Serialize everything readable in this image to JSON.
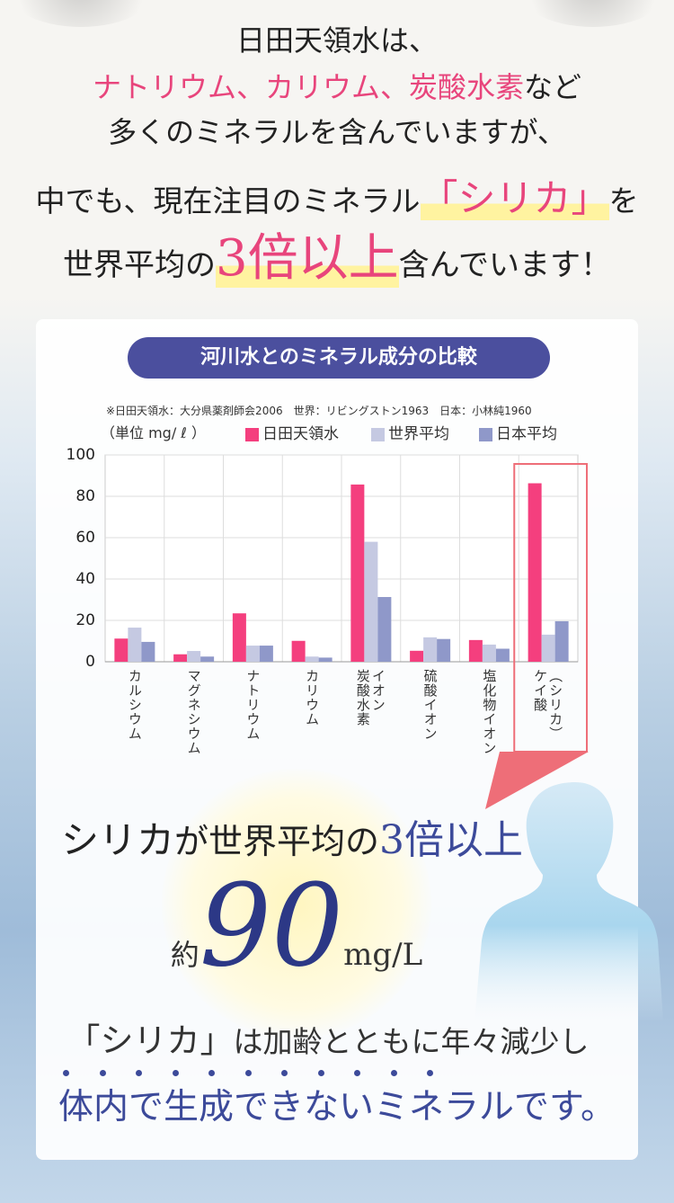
{
  "intro": {
    "line1": "日田天領水は、",
    "line2_highlight": "ナトリウム、カリウム、炭酸水素",
    "line2_rest": "など",
    "line3": "多くのミネラルを含んでいますが、",
    "line4_pre": "中でも、現在注目のミネラル",
    "line4_highlight": "「シリカ」",
    "line4_post": "を",
    "line5_pre": "世界平均の",
    "line5_highlight": "3倍以上",
    "line5_post": "含んでいます！"
  },
  "chart_data": {
    "type": "bar",
    "title": "河川水とのミネラル成分の比較",
    "source_note": "※日田天領水：大分県薬剤師会2006　世界：リビングストン1963　日本：小林純1960",
    "ylabel": "（単位 mg/ ℓ ）",
    "ylim": [
      0,
      100
    ],
    "yticks": [
      "0",
      "20",
      "40",
      "60",
      "80",
      "100"
    ],
    "grid": true,
    "legend_position": "top",
    "categories": [
      "カルシウム",
      "マグネシウム",
      "ナトリウム",
      "カリウム",
      "炭酸水素イオン",
      "硫酸イオン",
      "塩化物イオン",
      "ケイ酸（シリカ）"
    ],
    "category_labels": [
      [
        "カルシウム"
      ],
      [
        "マグネシウム"
      ],
      [
        "ナトリウム"
      ],
      [
        "カリウム"
      ],
      [
        "イオン",
        "炭酸水素"
      ],
      [
        "硫酸イオン"
      ],
      [
        "塩化物イオン"
      ],
      [
        "（シリカ）",
        "ケイ酸"
      ]
    ],
    "highlighted_category": "ケイ酸（シリカ）",
    "series": [
      {
        "name": "日田天領水",
        "color": "#f43f7e",
        "values": [
          11.2,
          3.6,
          23.4,
          10.1,
          85.7,
          5.3,
          10.5,
          86.3
        ]
      },
      {
        "name": "世界平均",
        "color": "#c5c9e2",
        "values": [
          16.5,
          5.2,
          7.8,
          2.5,
          58.0,
          11.8,
          8.3,
          13.1
        ]
      },
      {
        "name": "日本平均",
        "color": "#8f98c9",
        "values": [
          9.6,
          2.5,
          7.8,
          2.0,
          31.3,
          11.0,
          6.3,
          19.6
        ]
      }
    ]
  },
  "callout": {
    "line1_pre": "シリカ",
    "line1_mid": "が世界平均の",
    "line1_highlight": "3倍以上",
    "approx": "約",
    "value": "90",
    "unit": "mg/L"
  },
  "closing": {
    "line1_quote": "「シリカ」",
    "line1_rest": "は加齢とともに年々減少し",
    "line2": "体内で生成できないミネラルです。"
  }
}
